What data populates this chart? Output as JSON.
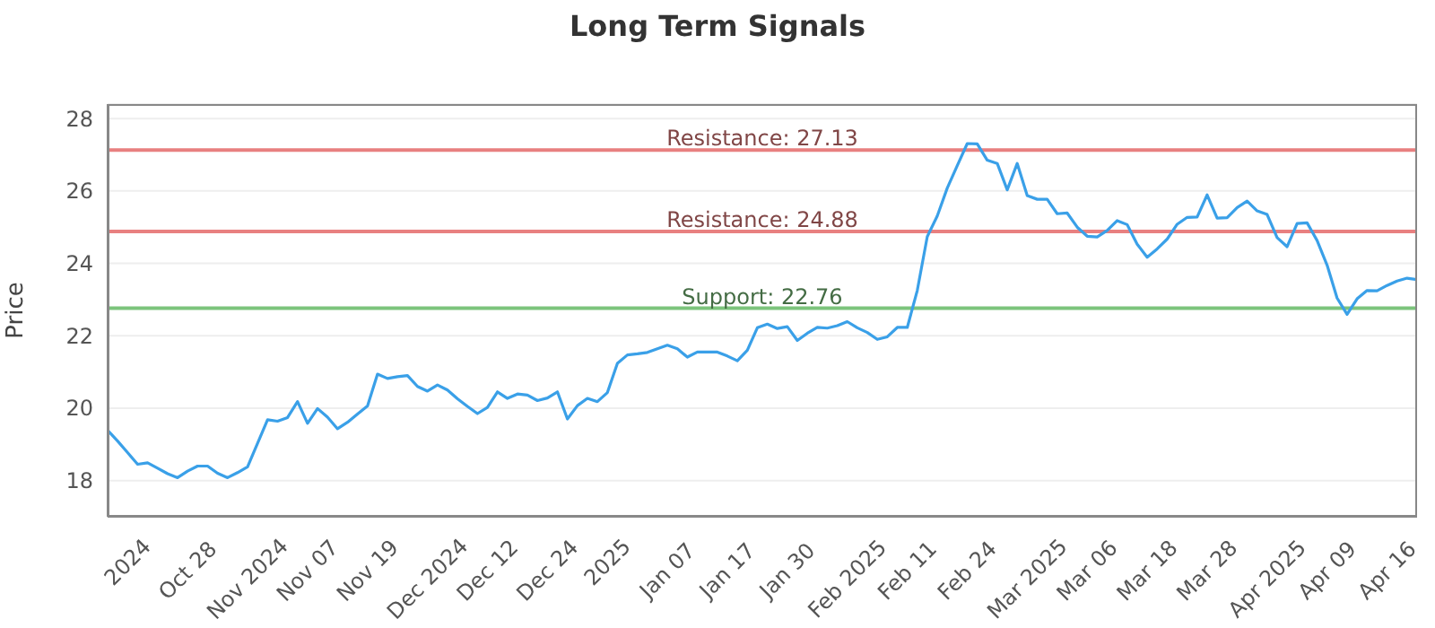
{
  "chart_data": {
    "type": "line",
    "title": "Long Term Signals",
    "ylabel": "Price",
    "categories": [
      null,
      null,
      "2024",
      null,
      null,
      null,
      null,
      null,
      "Oct 28",
      null,
      null,
      null,
      null,
      null,
      "Nov 2024",
      null,
      null,
      null,
      null,
      null,
      "Nov 07",
      null,
      null,
      null,
      null,
      null,
      "Nov 19",
      null,
      null,
      null,
      null,
      null,
      "Dec 2024",
      null,
      null,
      null,
      null,
      null,
      "Dec 12",
      null,
      null,
      null,
      null,
      null,
      "Dec 24",
      null,
      null,
      null,
      null,
      null,
      "2025",
      null,
      null,
      null,
      null,
      null,
      "Jan 07",
      null,
      null,
      null,
      null,
      null,
      "Jan 17",
      null,
      null,
      null,
      null,
      null,
      "Jan 30",
      null,
      null,
      null,
      null,
      null,
      "Feb 2025",
      null,
      null,
      null,
      null,
      null,
      "Feb 11",
      null,
      null,
      null,
      null,
      null,
      "Feb 24",
      null,
      null,
      null,
      null,
      null,
      "Mar 2025",
      null,
      null,
      null,
      null,
      null,
      "Mar 06",
      null,
      null,
      null,
      null,
      null,
      "Mar 18",
      null,
      null,
      null,
      null,
      null,
      "Mar 28",
      null,
      null,
      null,
      null,
      null,
      "Apr 2025",
      null,
      null,
      null,
      null,
      null,
      "Apr 09",
      null,
      null,
      null,
      null,
      null,
      "Apr 16",
      null,
      null,
      null
    ],
    "series": [
      {
        "color": "#3aa0e8",
        "values": [
          19.39,
          19.09,
          18.77,
          18.45,
          18.49,
          18.34,
          18.19,
          18.08,
          18.26,
          18.4,
          18.4,
          18.2,
          18.08,
          18.22,
          18.38,
          19.03,
          19.68,
          19.64,
          19.74,
          20.18,
          19.58,
          19.99,
          19.75,
          19.43,
          19.61,
          19.84,
          20.06,
          20.94,
          20.82,
          20.87,
          20.9,
          20.6,
          20.47,
          20.64,
          20.5,
          20.26,
          20.05,
          19.85,
          20.02,
          20.45,
          20.27,
          20.39,
          20.36,
          20.21,
          20.28,
          20.45,
          19.7,
          20.07,
          20.27,
          20.18,
          20.43,
          21.24,
          21.47,
          21.5,
          21.54,
          21.64,
          21.74,
          21.64,
          21.41,
          21.55,
          21.55,
          21.55,
          21.44,
          21.31,
          21.6,
          22.22,
          22.32,
          22.2,
          22.25,
          21.87,
          22.07,
          22.23,
          22.21,
          22.28,
          22.39,
          22.22,
          22.09,
          21.9,
          21.97,
          22.23,
          22.23,
          23.25,
          24.74,
          25.31,
          26.08,
          26.7,
          27.31,
          27.3,
          26.85,
          26.76,
          26.03,
          26.76,
          25.87,
          25.77,
          25.77,
          25.37,
          25.39,
          25.0,
          24.75,
          24.73,
          24.91,
          25.18,
          25.07,
          24.53,
          24.17,
          24.4,
          24.67,
          25.08,
          25.27,
          25.28,
          25.89,
          25.25,
          25.26,
          25.54,
          25.72,
          25.45,
          25.35,
          24.71,
          24.46,
          25.1,
          25.12,
          24.63,
          23.95,
          23.04,
          22.59,
          23.02,
          23.25,
          23.24,
          23.39,
          23.51,
          23.59,
          23.55
        ]
      }
    ],
    "ylim": [
      17,
      28.4
    ],
    "yticks": [
      18,
      20,
      22,
      24,
      26,
      28
    ],
    "grid": "y",
    "marker": "none",
    "line_style": "solid",
    "legend": false,
    "ref_lines": [
      {
        "axis": "y",
        "value": 27.13,
        "label": "Resistance: 27.13",
        "color": "#e88080"
      },
      {
        "axis": "y",
        "value": 24.88,
        "label": "Resistance: 24.88",
        "color": "#e88080"
      },
      {
        "axis": "y",
        "value": 22.76,
        "label": "Support: 22.76",
        "color": "#7cc47c"
      }
    ]
  }
}
